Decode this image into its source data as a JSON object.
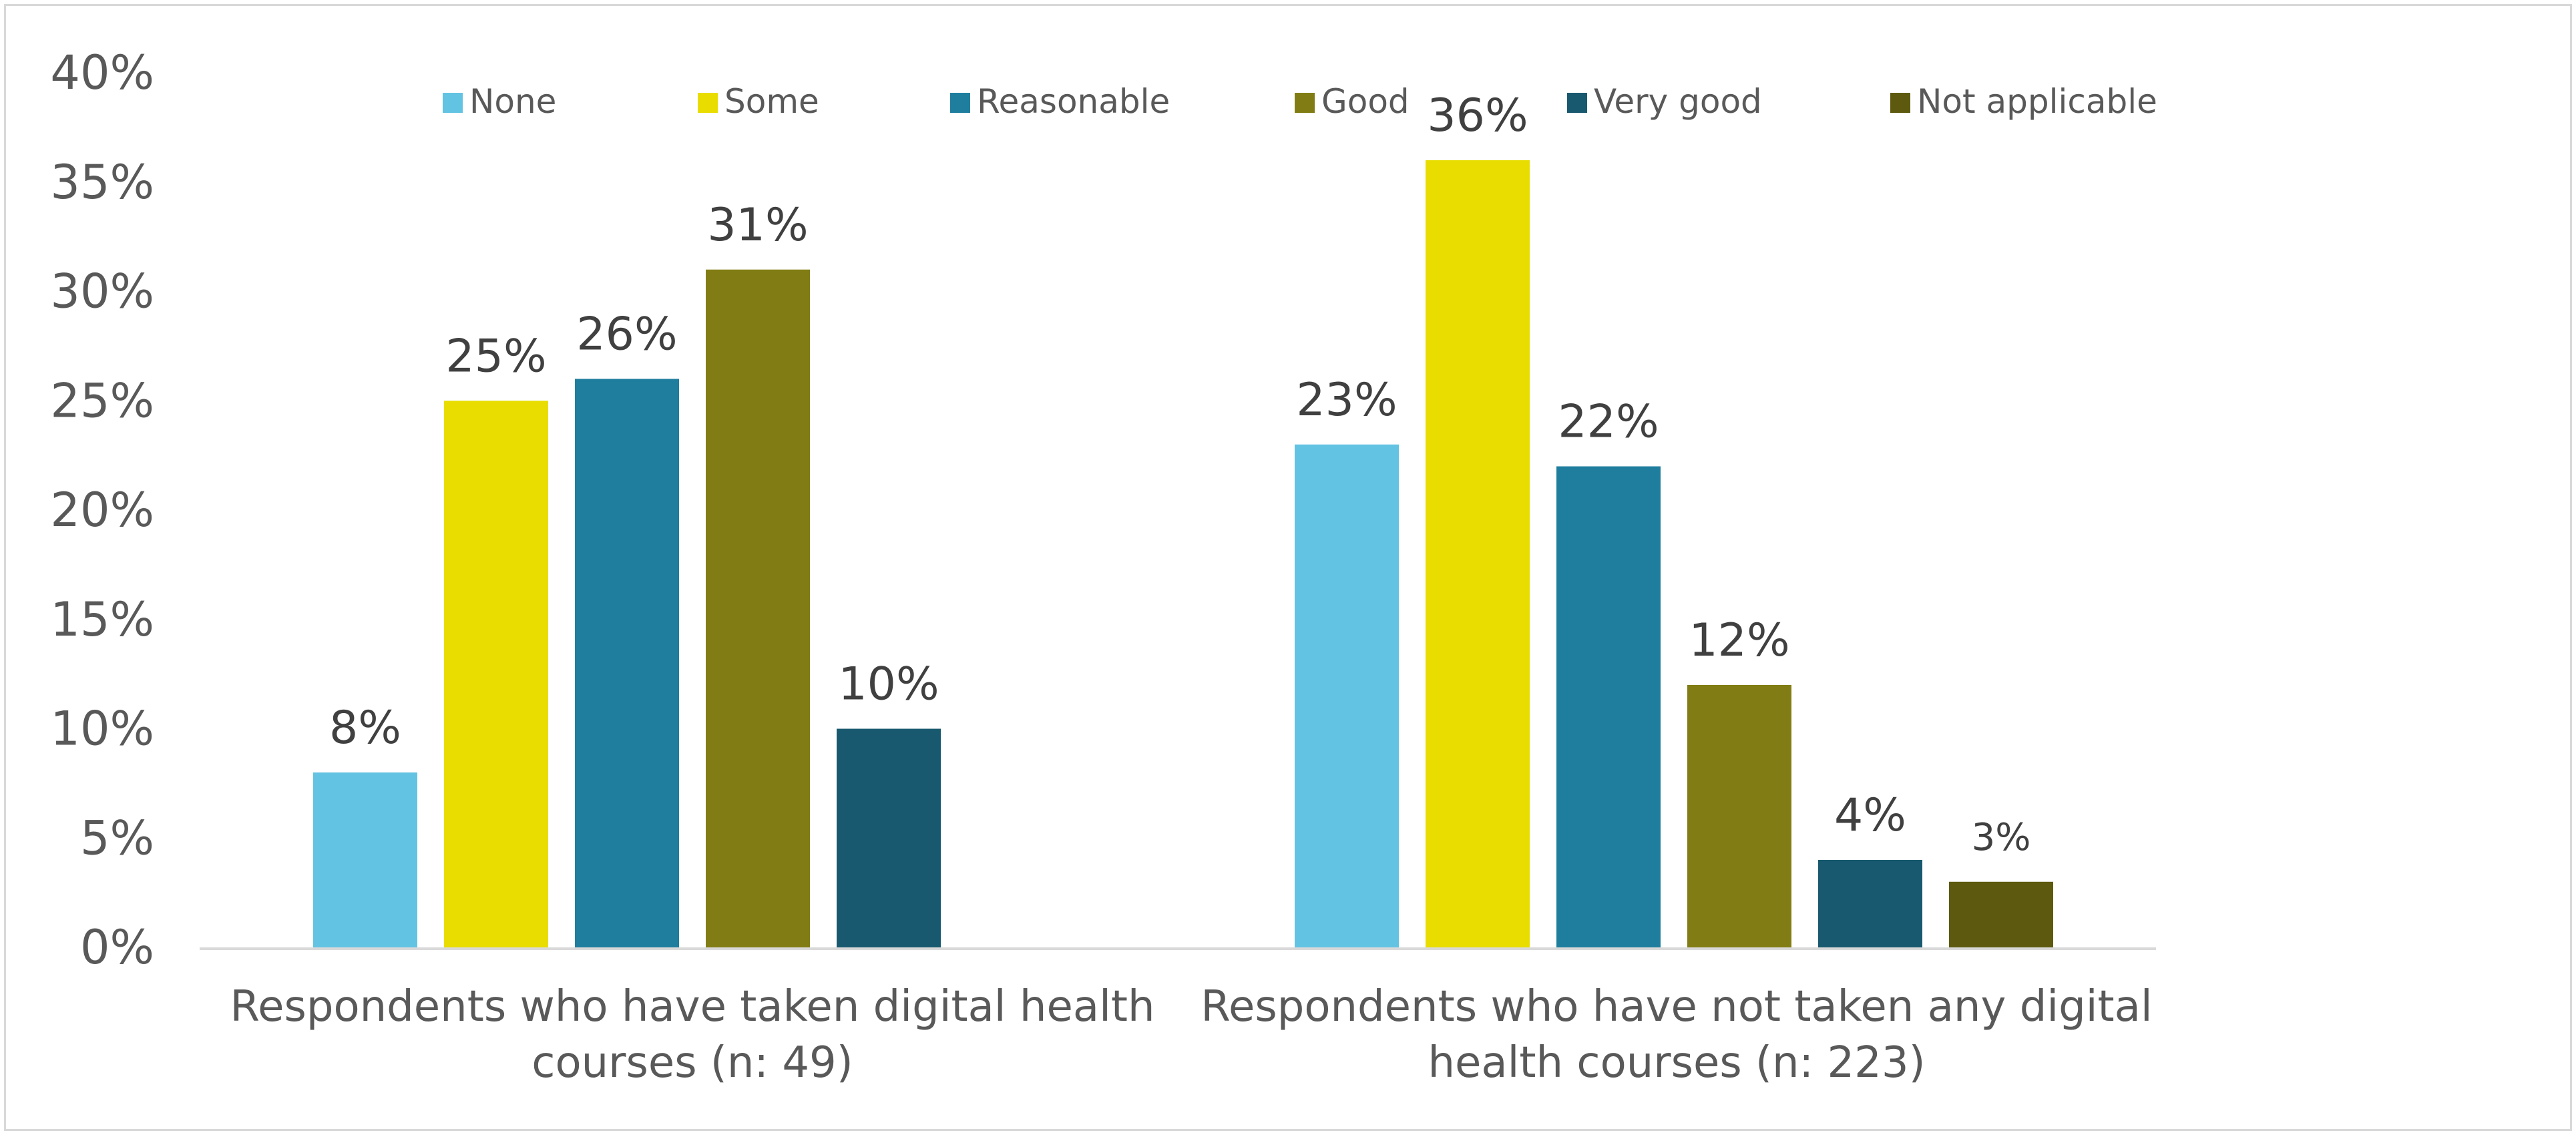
{
  "chart_data": {
    "type": "bar",
    "title": "",
    "xlabel": "",
    "ylabel": "",
    "ylim": [
      0,
      40
    ],
    "y_ticks": [
      0,
      5,
      10,
      15,
      20,
      25,
      30,
      35,
      40
    ],
    "y_tick_labels": [
      "0%",
      "5%",
      "10%",
      "15%",
      "20%",
      "25%",
      "30%",
      "35%",
      "40%"
    ],
    "grid": false,
    "legend_position": "top",
    "categories": [
      [
        "Respondents who have taken digital health",
        "courses (n: 49)"
      ],
      [
        "Respondents who have not taken any digital",
        "health courses (n: 223)"
      ]
    ],
    "series": [
      {
        "name": "None",
        "color": "#63c3e3",
        "values": [
          8,
          23
        ],
        "labels": [
          "8%",
          "23%"
        ]
      },
      {
        "name": "Some",
        "color": "#e9dd00",
        "values": [
          25,
          36
        ],
        "labels": [
          "25%",
          "36%"
        ]
      },
      {
        "name": "Reasonable",
        "color": "#1f7e9e",
        "values": [
          26,
          22
        ],
        "labels": [
          "26%",
          "22%"
        ]
      },
      {
        "name": "Good",
        "color": "#817d14",
        "values": [
          31,
          12
        ],
        "labels": [
          "31%",
          "12%"
        ]
      },
      {
        "name": "Very good",
        "color": "#18596f",
        "values": [
          10,
          4
        ],
        "labels": [
          "10%",
          "4%"
        ]
      },
      {
        "name": "Not applicable",
        "color": "#5d5a0f",
        "values": [
          null,
          3
        ],
        "labels": [
          null,
          "3%"
        ]
      }
    ]
  }
}
